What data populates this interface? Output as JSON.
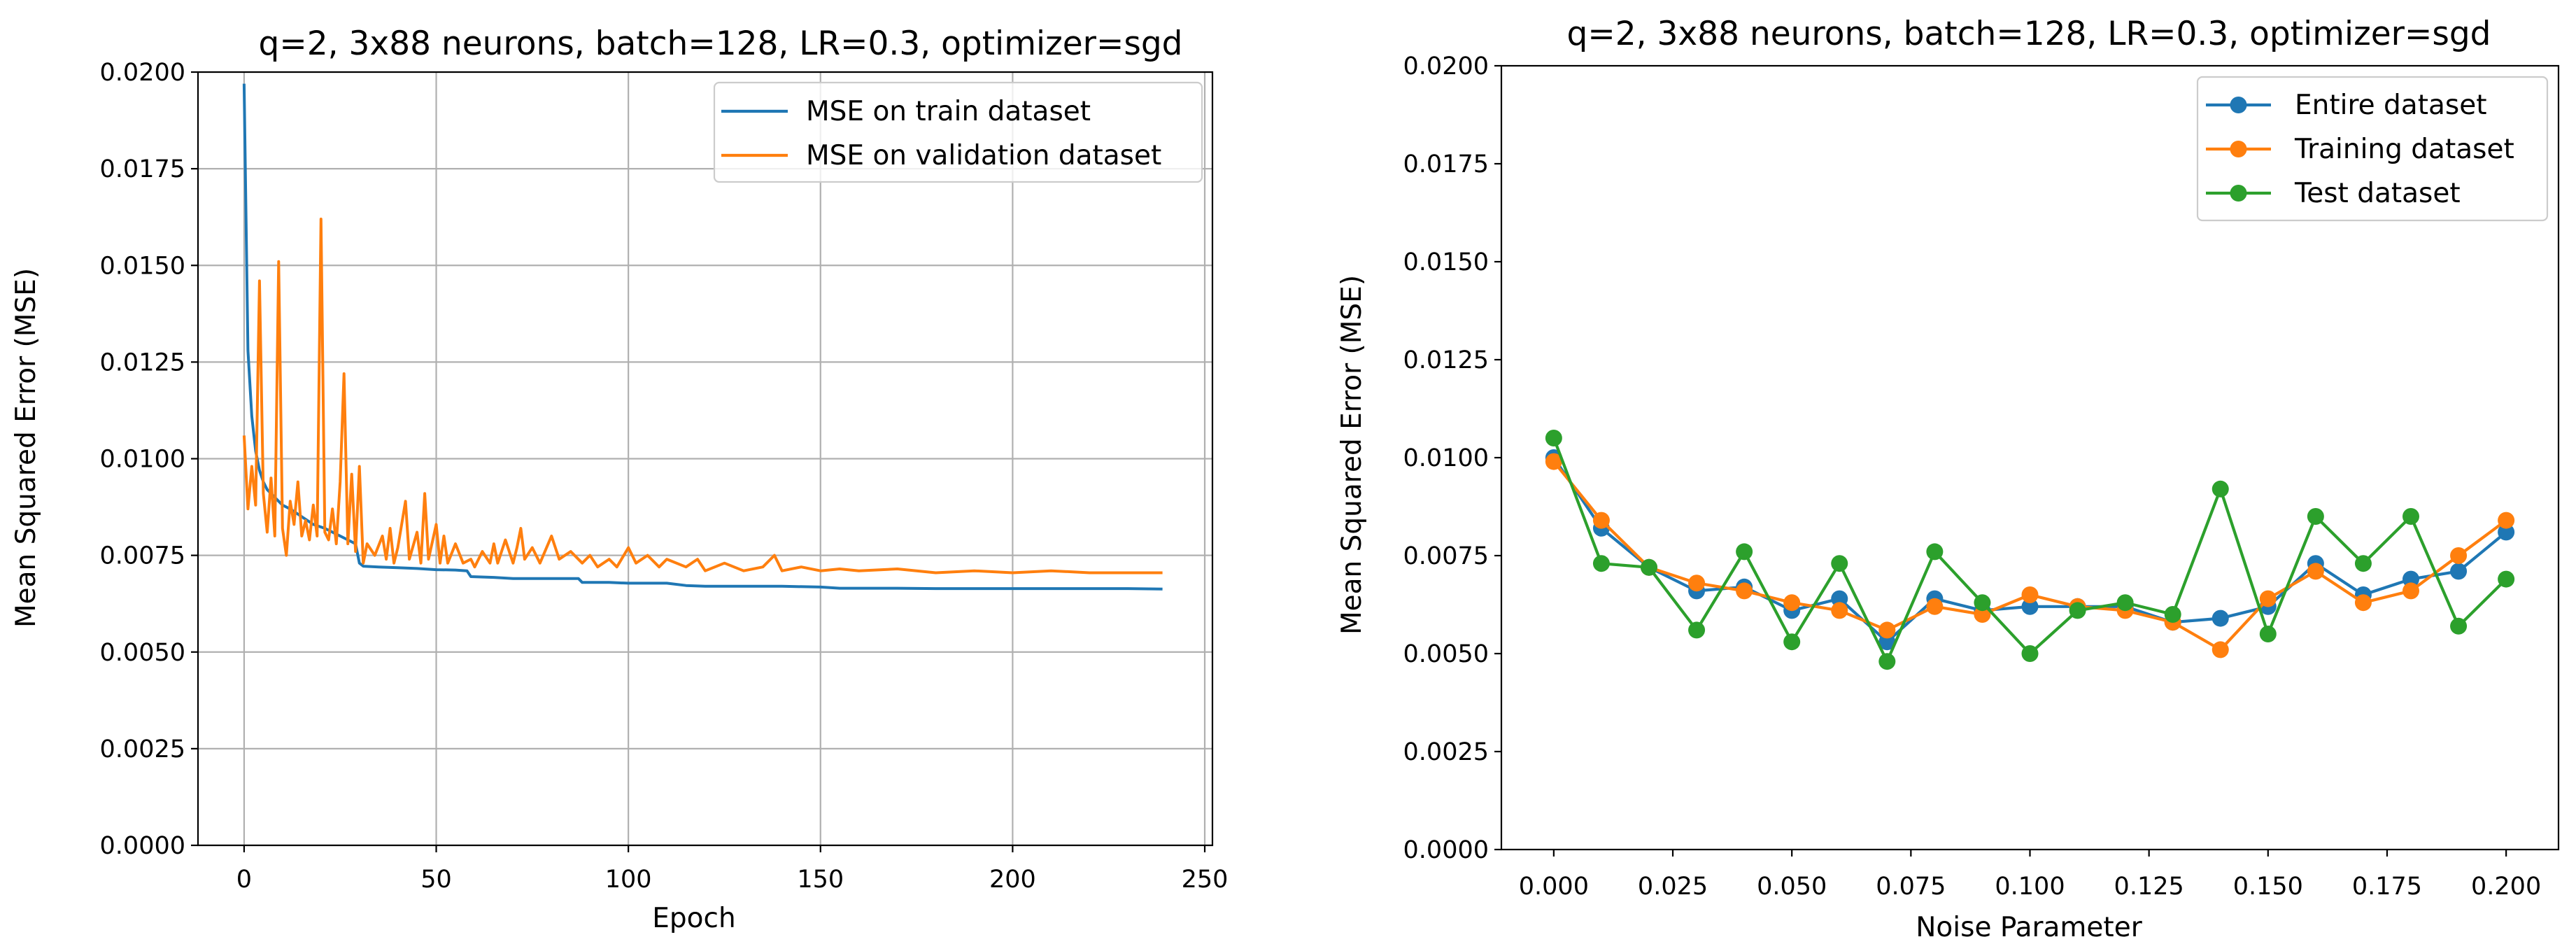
{
  "colors": {
    "blue": "#1f77b4",
    "orange": "#ff7f0e",
    "green": "#2ca02c",
    "grid": "#b0b0b0"
  },
  "chart_data": [
    {
      "type": "line",
      "title": "q=2, 3x88 neurons, batch=128, LR=0.3, optimizer=sgd",
      "xlabel": "Epoch",
      "ylabel": "Mean Squared Error (MSE)",
      "xlim": [
        -12,
        252
      ],
      "ylim": [
        0,
        0.02
      ],
      "grid": true,
      "legend_position": "top-right",
      "xticks": [
        0,
        50,
        100,
        150,
        200,
        250
      ],
      "xtick_labels": [
        "0",
        "50",
        "100",
        "150",
        "200",
        "250"
      ],
      "yticks": [
        0,
        0.0025,
        0.005,
        0.0075,
        0.01,
        0.0125,
        0.015,
        0.0175,
        0.02
      ],
      "ytick_labels": [
        "0.0000",
        "0.0025",
        "0.0050",
        "0.0075",
        "0.0100",
        "0.0125",
        "0.0150",
        "0.0175",
        "0.0200"
      ],
      "series": [
        {
          "name": "MSE on train dataset",
          "color": "blue",
          "points": [
            [
              0,
              0.0197
            ],
            [
              1,
              0.0128
            ],
            [
              2,
              0.0111
            ],
            [
              3,
              0.0102
            ],
            [
              4,
              0.0097
            ],
            [
              5,
              0.0094
            ],
            [
              6,
              0.0092
            ],
            [
              8,
              0.009
            ],
            [
              10,
              0.0088
            ],
            [
              12,
              0.0087
            ],
            [
              15,
              0.0085
            ],
            [
              18,
              0.0083
            ],
            [
              21,
              0.0082
            ],
            [
              24,
              0.00805
            ],
            [
              27,
              0.0079
            ],
            [
              29,
              0.0078
            ],
            [
              30,
              0.0073
            ],
            [
              31,
              0.00722
            ],
            [
              35,
              0.0072
            ],
            [
              40,
              0.00718
            ],
            [
              45,
              0.00716
            ],
            [
              50,
              0.00713
            ],
            [
              55,
              0.00712
            ],
            [
              58,
              0.0071
            ],
            [
              59,
              0.00695
            ],
            [
              65,
              0.00693
            ],
            [
              70,
              0.0069
            ],
            [
              80,
              0.0069
            ],
            [
              87,
              0.0069
            ],
            [
              88,
              0.0068
            ],
            [
              95,
              0.0068
            ],
            [
              100,
              0.00678
            ],
            [
              110,
              0.00678
            ],
            [
              115,
              0.00672
            ],
            [
              120,
              0.0067
            ],
            [
              130,
              0.0067
            ],
            [
              140,
              0.0067
            ],
            [
              150,
              0.00668
            ],
            [
              155,
              0.00665
            ],
            [
              170,
              0.00665
            ],
            [
              180,
              0.00664
            ],
            [
              190,
              0.00664
            ],
            [
              200,
              0.00664
            ],
            [
              215,
              0.00664
            ],
            [
              230,
              0.00664
            ],
            [
              239,
              0.00663
            ]
          ]
        },
        {
          "name": "MSE on validation dataset",
          "color": "orange",
          "points": [
            [
              0,
              0.0106
            ],
            [
              1,
              0.0087
            ],
            [
              2,
              0.0098
            ],
            [
              3,
              0.0088
            ],
            [
              4,
              0.0146
            ],
            [
              5,
              0.0091
            ],
            [
              6,
              0.0081
            ],
            [
              7,
              0.0095
            ],
            [
              8,
              0.008
            ],
            [
              9,
              0.0151
            ],
            [
              10,
              0.0082
            ],
            [
              11,
              0.0075
            ],
            [
              12,
              0.0089
            ],
            [
              13,
              0.0083
            ],
            [
              14,
              0.0094
            ],
            [
              15,
              0.008
            ],
            [
              16,
              0.0084
            ],
            [
              17,
              0.0079
            ],
            [
              18,
              0.0088
            ],
            [
              19,
              0.008
            ],
            [
              20,
              0.0162
            ],
            [
              21,
              0.0081
            ],
            [
              22,
              0.0079
            ],
            [
              23,
              0.0087
            ],
            [
              24,
              0.0078
            ],
            [
              25,
              0.0094
            ],
            [
              26,
              0.0122
            ],
            [
              27,
              0.0078
            ],
            [
              28,
              0.0096
            ],
            [
              29,
              0.0076
            ],
            [
              30,
              0.0098
            ],
            [
              31,
              0.0073
            ],
            [
              32,
              0.0078
            ],
            [
              34,
              0.0075
            ],
            [
              36,
              0.008
            ],
            [
              37,
              0.0074
            ],
            [
              38,
              0.0082
            ],
            [
              39,
              0.0073
            ],
            [
              40,
              0.0077
            ],
            [
              42,
              0.0089
            ],
            [
              43,
              0.0074
            ],
            [
              45,
              0.0081
            ],
            [
              46,
              0.0073
            ],
            [
              47,
              0.0091
            ],
            [
              48,
              0.0074
            ],
            [
              50,
              0.0083
            ],
            [
              51,
              0.0073
            ],
            [
              52,
              0.008
            ],
            [
              53,
              0.0073
            ],
            [
              55,
              0.0078
            ],
            [
              57,
              0.0073
            ],
            [
              59,
              0.0074
            ],
            [
              60,
              0.0072
            ],
            [
              62,
              0.0076
            ],
            [
              64,
              0.0073
            ],
            [
              65,
              0.0078
            ],
            [
              66,
              0.0073
            ],
            [
              68,
              0.0079
            ],
            [
              70,
              0.0073
            ],
            [
              71,
              0.0077
            ],
            [
              72,
              0.0082
            ],
            [
              73,
              0.0074
            ],
            [
              75,
              0.0077
            ],
            [
              77,
              0.0073
            ],
            [
              80,
              0.008
            ],
            [
              82,
              0.0074
            ],
            [
              85,
              0.0076
            ],
            [
              88,
              0.0073
            ],
            [
              90,
              0.0075
            ],
            [
              92,
              0.0072
            ],
            [
              95,
              0.0074
            ],
            [
              97,
              0.0072
            ],
            [
              100,
              0.0077
            ],
            [
              102,
              0.0073
            ],
            [
              105,
              0.0075
            ],
            [
              108,
              0.0072
            ],
            [
              110,
              0.0074
            ],
            [
              115,
              0.0072
            ],
            [
              118,
              0.0074
            ],
            [
              120,
              0.0071
            ],
            [
              125,
              0.0073
            ],
            [
              130,
              0.0071
            ],
            [
              135,
              0.0072
            ],
            [
              138,
              0.0075
            ],
            [
              140,
              0.0071
            ],
            [
              145,
              0.0072
            ],
            [
              150,
              0.0071
            ],
            [
              155,
              0.00715
            ],
            [
              160,
              0.0071
            ],
            [
              170,
              0.00715
            ],
            [
              180,
              0.00705
            ],
            [
              190,
              0.0071
            ],
            [
              200,
              0.00705
            ],
            [
              210,
              0.0071
            ],
            [
              220,
              0.00705
            ],
            [
              230,
              0.00705
            ],
            [
              239,
              0.00705
            ]
          ]
        }
      ]
    },
    {
      "type": "line",
      "title": "q=2, 3x88 neurons, batch=128, LR=0.3, optimizer=sgd",
      "xlabel": "Noise Parameter",
      "ylabel": "Mean Squared Error (MSE)",
      "xlim": [
        -0.011,
        0.211
      ],
      "ylim": [
        0,
        0.02
      ],
      "grid": false,
      "legend_position": "top-right",
      "xticks": [
        0,
        0.025,
        0.05,
        0.075,
        0.1,
        0.125,
        0.15,
        0.175,
        0.2
      ],
      "xtick_labels": [
        "0.000",
        "0.025",
        "0.050",
        "0.075",
        "0.100",
        "0.125",
        "0.150",
        "0.175",
        "0.200"
      ],
      "yticks": [
        0,
        0.0025,
        0.005,
        0.0075,
        0.01,
        0.0125,
        0.015,
        0.0175,
        0.02
      ],
      "ytick_labels": [
        "0.0000",
        "0.0025",
        "0.0050",
        "0.0075",
        "0.0100",
        "0.0125",
        "0.0150",
        "0.0175",
        "0.0200"
      ],
      "x": [
        0,
        0.01,
        0.02,
        0.03,
        0.04,
        0.05,
        0.06,
        0.07,
        0.08,
        0.09,
        0.1,
        0.11,
        0.12,
        0.13,
        0.14,
        0.15,
        0.16,
        0.17,
        0.18,
        0.19,
        0.2
      ],
      "series": [
        {
          "name": "Entire dataset",
          "color": "blue",
          "values": [
            0.01,
            0.0082,
            0.0072,
            0.0066,
            0.0067,
            0.0061,
            0.0064,
            0.0053,
            0.0064,
            0.0061,
            0.0062,
            0.0062,
            0.0062,
            0.0058,
            0.0059,
            0.0062,
            0.0073,
            0.0065,
            0.0069,
            0.0071,
            0.0081
          ]
        },
        {
          "name": "Training dataset",
          "color": "orange",
          "values": [
            0.0099,
            0.0084,
            0.0072,
            0.0068,
            0.0066,
            0.0063,
            0.0061,
            0.0056,
            0.0062,
            0.006,
            0.0065,
            0.0062,
            0.0061,
            0.0058,
            0.0051,
            0.0064,
            0.0071,
            0.0063,
            0.0066,
            0.0075,
            0.0084
          ]
        },
        {
          "name": "Test dataset",
          "color": "green",
          "values": [
            0.0105,
            0.0073,
            0.0072,
            0.0056,
            0.0076,
            0.0053,
            0.0073,
            0.0048,
            0.0076,
            0.0063,
            0.005,
            0.0061,
            0.0063,
            0.006,
            0.0092,
            0.0055,
            0.0085,
            0.0073,
            0.0085,
            0.0057,
            0.0069
          ]
        }
      ]
    }
  ]
}
